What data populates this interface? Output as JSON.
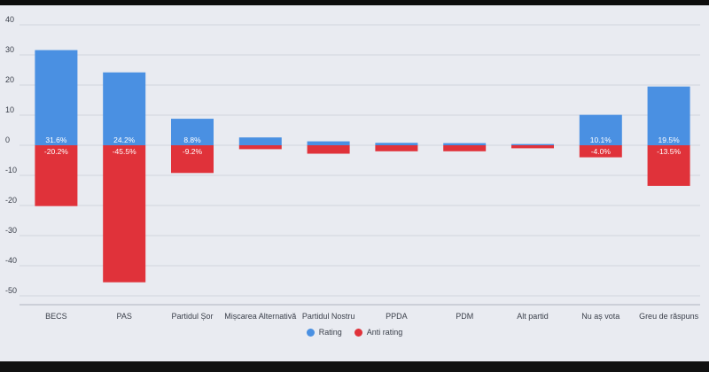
{
  "chart_data": {
    "type": "bar",
    "categories": [
      "BECS",
      "PAS",
      "Partidul Șor",
      "Mișcarea Alternativă",
      "Partidul Nostru",
      "PPDA",
      "PDM",
      "Alt partid",
      "Nu aș vota",
      "Greu de răspuns"
    ],
    "series": [
      {
        "name": "Rating",
        "color": "#4a90e2",
        "values": [
          31.6,
          24.2,
          8.8,
          2.6,
          1.3,
          0.8,
          0.7,
          0.4,
          10.1,
          19.5
        ],
        "labels": [
          "31.6%",
          "24.2%",
          "8.8%",
          "",
          "",
          "",
          "",
          "",
          "10.1%",
          "19.5%"
        ]
      },
      {
        "name": "Anti rating",
        "color": "#e0323a",
        "values": [
          -20.2,
          -45.5,
          -9.2,
          -1.3,
          -2.8,
          -2.0,
          -2.0,
          -1.0,
          -4.0,
          -13.5
        ],
        "labels": [
          "-20.2%",
          "-45.5%",
          "-9.2%",
          "",
          "",
          "",
          "",
          "",
          "-4.0%",
          "-13.5%"
        ]
      }
    ],
    "ylim": [
      -50,
      40
    ],
    "yticks": [
      40,
      30,
      20,
      10,
      0,
      -10,
      -20,
      -30,
      -40,
      -50
    ],
    "grid": true,
    "legend_position": "bottom-center",
    "stacked": true
  }
}
